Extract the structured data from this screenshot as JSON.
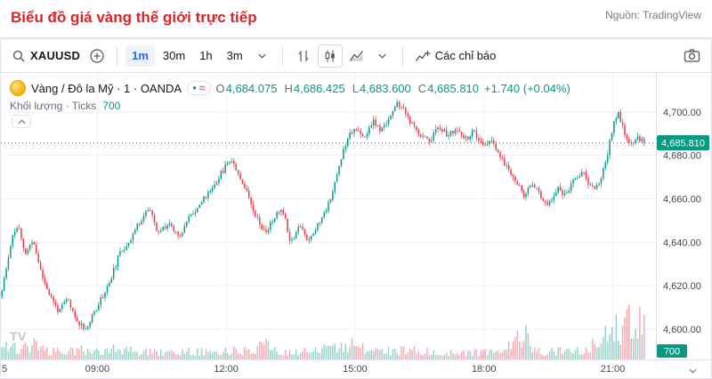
{
  "page": {
    "title": "Biểu đồ giá vàng thế giới trực tiếp",
    "source": "Nguồn: TradingView"
  },
  "toolbar": {
    "symbol": "XAUUSD",
    "intervals": [
      {
        "label": "1m",
        "active": true
      },
      {
        "label": "30m",
        "active": false
      },
      {
        "label": "1h",
        "active": false
      },
      {
        "label": "3m",
        "active": false
      }
    ],
    "indicators_label": "Các chỉ báo"
  },
  "legend": {
    "symbol_title": "Vàng / Đô la Mỹ · 1 · OANDA",
    "chip_dot": "●",
    "chip_wave": "≈",
    "ohlc": {
      "o_label": "O",
      "o": "4,684.075",
      "h_label": "H",
      "h": "4,686.425",
      "l_label": "L",
      "l": "4,683.600",
      "c_label": "C",
      "c": "4,685.810",
      "change": "+1.740 (+0.04%)"
    },
    "volume_label": "Khối lượng · Ticks",
    "volume_value": "700"
  },
  "axis": {
    "price_labels": [
      "4,700.00",
      "4,680.00",
      "4,660.00",
      "4,640.00",
      "4,620.00",
      "4,600.00"
    ],
    "time_labels": [
      "09:00",
      "12:00",
      "15:00",
      "18:00",
      "21:00"
    ],
    "edge_time_label": "5",
    "last_price_label": "4,685.810",
    "volume_badge": "700"
  },
  "icons": {
    "tv_logo_text": "TV"
  },
  "colors": {
    "up": "#089981",
    "down": "#f23645",
    "accent_blue": "#2962ff",
    "title_red": "#d8252b",
    "muted": "#787b86",
    "grid": "#f0f3fa",
    "border": "#e0e3eb",
    "axis_text": "#434651",
    "badge_text": "#ffffff"
  },
  "chart_data": {
    "type": "candlestick",
    "symbol": "XAUUSD",
    "interval": "1m",
    "exchange": "OANDA",
    "last_close": 4685.81,
    "open": 4684.075,
    "high": 4686.425,
    "low": 4683.6,
    "close": 4685.81,
    "change": 1.74,
    "change_pct": 0.04,
    "volume_last": 700,
    "time_start_hour": 6.75,
    "time_end_hour": 22.0,
    "data_end_hour": 21.75,
    "price_min": 4586,
    "price_max": 4718,
    "grid_prices": [
      4700,
      4680,
      4660,
      4640,
      4620,
      4600
    ],
    "grid_hours": [
      9,
      12,
      15,
      18,
      21
    ],
    "candle_count": 300,
    "volume_max": 300,
    "price_path": [
      [
        6.75,
        4615
      ],
      [
        6.88,
        4628
      ],
      [
        7.0,
        4642
      ],
      [
        7.15,
        4648
      ],
      [
        7.3,
        4634
      ],
      [
        7.5,
        4641
      ],
      [
        7.7,
        4625
      ],
      [
        7.9,
        4615
      ],
      [
        8.1,
        4608
      ],
      [
        8.3,
        4614
      ],
      [
        8.5,
        4604
      ],
      [
        8.75,
        4600
      ],
      [
        9.0,
        4611
      ],
      [
        9.25,
        4620
      ],
      [
        9.5,
        4634
      ],
      [
        9.75,
        4641
      ],
      [
        10.0,
        4650
      ],
      [
        10.2,
        4656
      ],
      [
        10.4,
        4644
      ],
      [
        10.65,
        4649
      ],
      [
        10.9,
        4643
      ],
      [
        11.15,
        4652
      ],
      [
        11.4,
        4658
      ],
      [
        11.7,
        4666
      ],
      [
        11.95,
        4674
      ],
      [
        12.1,
        4679
      ],
      [
        12.3,
        4671
      ],
      [
        12.5,
        4662
      ],
      [
        12.7,
        4652
      ],
      [
        12.9,
        4644
      ],
      [
        13.1,
        4651
      ],
      [
        13.3,
        4656
      ],
      [
        13.5,
        4640
      ],
      [
        13.7,
        4648
      ],
      [
        13.9,
        4641
      ],
      [
        14.1,
        4647
      ],
      [
        14.3,
        4654
      ],
      [
        14.5,
        4665
      ],
      [
        14.7,
        4681
      ],
      [
        14.85,
        4690
      ],
      [
        15.0,
        4693
      ],
      [
        15.2,
        4687
      ],
      [
        15.4,
        4696
      ],
      [
        15.6,
        4691
      ],
      [
        15.8,
        4698
      ],
      [
        16.0,
        4704
      ],
      [
        16.15,
        4700
      ],
      [
        16.35,
        4693
      ],
      [
        16.55,
        4689
      ],
      [
        16.75,
        4687
      ],
      [
        16.95,
        4694
      ],
      [
        17.15,
        4689
      ],
      [
        17.35,
        4692
      ],
      [
        17.55,
        4687
      ],
      [
        17.75,
        4691
      ],
      [
        17.95,
        4684
      ],
      [
        18.15,
        4687
      ],
      [
        18.35,
        4680
      ],
      [
        18.55,
        4674
      ],
      [
        18.75,
        4668
      ],
      [
        18.95,
        4661
      ],
      [
        19.1,
        4667
      ],
      [
        19.3,
        4662
      ],
      [
        19.5,
        4657
      ],
      [
        19.7,
        4665
      ],
      [
        19.9,
        4661
      ],
      [
        20.1,
        4669
      ],
      [
        20.3,
        4673
      ],
      [
        20.5,
        4664
      ],
      [
        20.7,
        4668
      ],
      [
        20.85,
        4678
      ],
      [
        21.0,
        4694
      ],
      [
        21.12,
        4700
      ],
      [
        21.25,
        4691
      ],
      [
        21.4,
        4684
      ],
      [
        21.55,
        4689
      ],
      [
        21.75,
        4685.81
      ]
    ],
    "volume_profile": [
      [
        6.75,
        70
      ],
      [
        7.0,
        100
      ],
      [
        7.2,
        60
      ],
      [
        7.6,
        120
      ],
      [
        7.8,
        55
      ],
      [
        8.2,
        45
      ],
      [
        8.6,
        60
      ],
      [
        9.0,
        50
      ],
      [
        9.4,
        70
      ],
      [
        9.9,
        55
      ],
      [
        10.3,
        45
      ],
      [
        10.8,
        40
      ],
      [
        11.3,
        55
      ],
      [
        11.8,
        45
      ],
      [
        12.2,
        60
      ],
      [
        12.6,
        50
      ],
      [
        12.95,
        150
      ],
      [
        13.1,
        60
      ],
      [
        13.5,
        45
      ],
      [
        14.0,
        50
      ],
      [
        14.5,
        80
      ],
      [
        14.9,
        90
      ],
      [
        15.3,
        60
      ],
      [
        15.8,
        55
      ],
      [
        16.3,
        65
      ],
      [
        16.8,
        45
      ],
      [
        17.3,
        40
      ],
      [
        17.8,
        50
      ],
      [
        18.3,
        45
      ],
      [
        18.7,
        120
      ],
      [
        18.95,
        170
      ],
      [
        19.1,
        60
      ],
      [
        19.5,
        50
      ],
      [
        20.0,
        55
      ],
      [
        20.5,
        80
      ],
      [
        20.75,
        150
      ],
      [
        20.95,
        200
      ],
      [
        21.1,
        240
      ],
      [
        21.25,
        210
      ],
      [
        21.4,
        260
      ],
      [
        21.55,
        190
      ],
      [
        21.7,
        280
      ],
      [
        21.75,
        230
      ]
    ]
  }
}
